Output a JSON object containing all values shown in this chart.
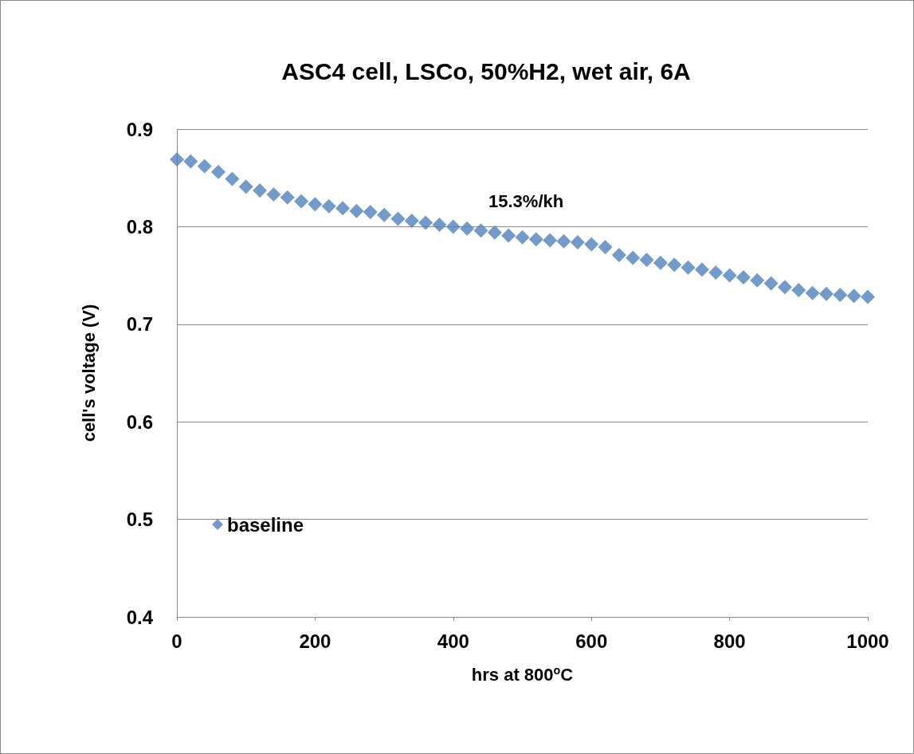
{
  "chart_data": {
    "type": "scatter",
    "title": "ASC4 cell, LSCo, 50%H2, wet air, 6A",
    "xlabel": "hrs at 800$^{o}$C",
    "ylabel": "cell's voltage (V)",
    "annotations": [
      "15.3%/kh"
    ],
    "x": [
      0,
      20,
      40,
      60,
      80,
      100,
      120,
      140,
      160,
      180,
      200,
      220,
      240,
      260,
      280,
      300,
      320,
      340,
      360,
      380,
      400,
      420,
      440,
      460,
      480,
      500,
      520,
      540,
      560,
      580,
      600,
      620,
      640,
      660,
      680,
      700,
      720,
      740,
      760,
      780,
      800,
      820,
      840,
      860,
      880,
      900,
      920,
      940,
      960,
      980,
      1000
    ],
    "series": [
      {
        "name": "baseline",
        "color": "#4f81bd",
        "values": [
          0.869,
          0.867,
          0.862,
          0.856,
          0.849,
          0.841,
          0.837,
          0.833,
          0.83,
          0.826,
          0.823,
          0.821,
          0.819,
          0.816,
          0.815,
          0.812,
          0.808,
          0.806,
          0.804,
          0.802,
          0.8,
          0.798,
          0.796,
          0.794,
          0.791,
          0.789,
          0.787,
          0.786,
          0.785,
          0.784,
          0.782,
          0.779,
          0.771,
          0.768,
          0.766,
          0.763,
          0.761,
          0.758,
          0.756,
          0.753,
          0.75,
          0.748,
          0.745,
          0.742,
          0.738,
          0.735,
          0.732,
          0.731,
          0.73,
          0.729,
          0.728
        ]
      }
    ],
    "xlim": [
      0,
      1000
    ],
    "xticks": [
      0,
      200,
      400,
      600,
      800,
      1000
    ],
    "ylim": [
      0.4,
      0.9
    ],
    "yticks": [
      0.4,
      0.5,
      0.6,
      0.7,
      0.8,
      0.9
    ],
    "grid": "y",
    "legend": "bottom left",
    "marker": "diamond"
  }
}
